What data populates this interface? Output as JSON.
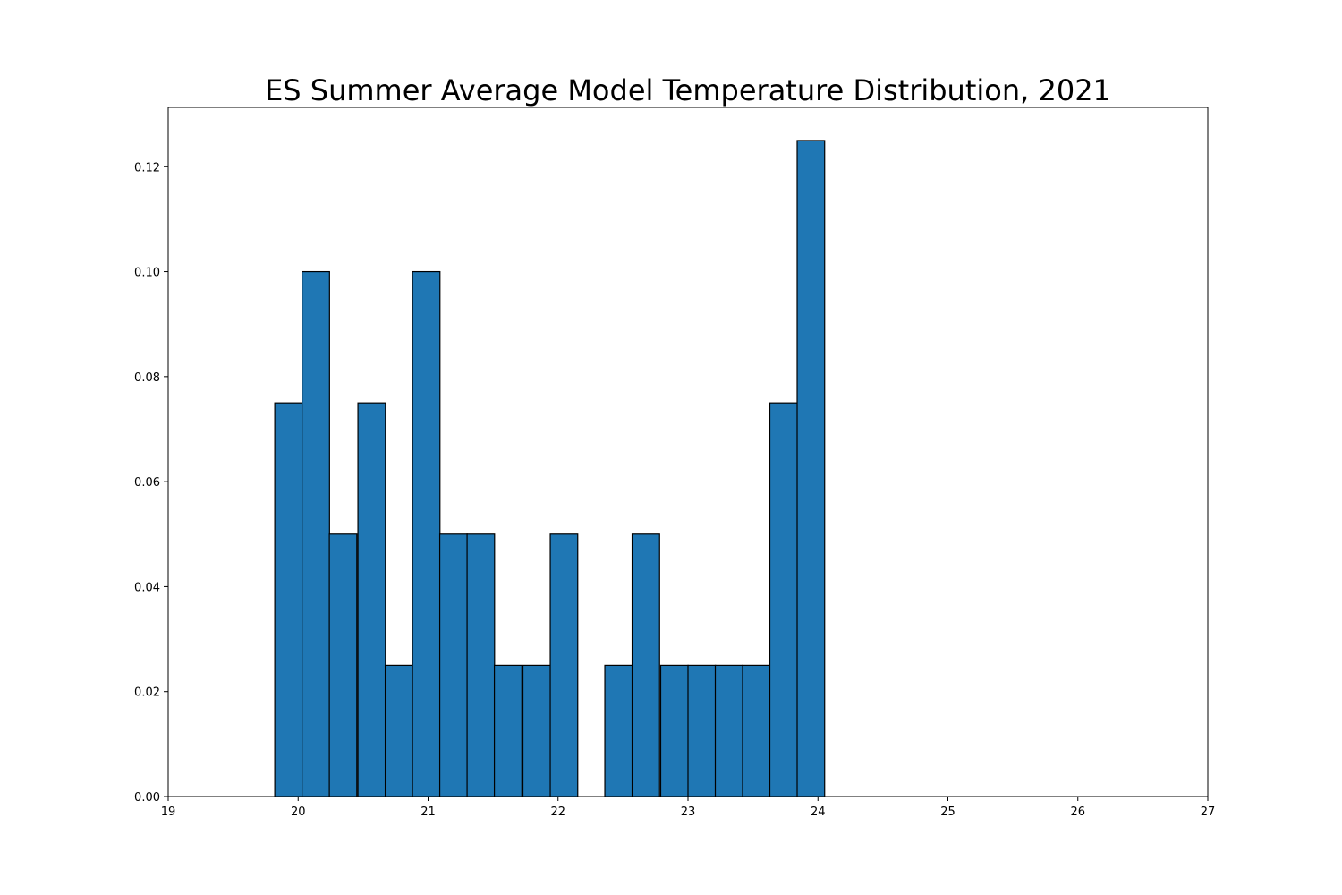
{
  "chart_data": {
    "type": "bar",
    "title": "ES Summer Average Model Temperature Distribution, 2021",
    "xlabel": "",
    "ylabel": "",
    "xlim": [
      19,
      27
    ],
    "ylim": [
      0,
      0.1313
    ],
    "x_ticks": [
      "19",
      "20",
      "21",
      "22",
      "23",
      "24",
      "25",
      "26",
      "27"
    ],
    "y_ticks": [
      "0.00",
      "0.02",
      "0.04",
      "0.06",
      "0.08",
      "0.10",
      "0.12"
    ],
    "bin_width": 0.2115,
    "bin_starts": [
      19.82,
      20.03,
      20.24,
      20.46,
      20.67,
      20.88,
      21.09,
      21.3,
      21.51,
      21.73,
      21.94,
      22.15,
      22.36,
      22.57,
      22.79,
      23.0,
      23.21,
      23.42,
      23.63,
      23.84
    ],
    "values": [
      0.075,
      0.1,
      0.05,
      0.075,
      0.025,
      0.1,
      0.05,
      0.05,
      0.025,
      0.025,
      0.05,
      0.0,
      0.025,
      0.05,
      0.025,
      0.025,
      0.025,
      0.025,
      0.075,
      0.125
    ],
    "bar_color": "#1f77b4",
    "edge_color": "#000000",
    "grid": false,
    "legend": "none"
  }
}
